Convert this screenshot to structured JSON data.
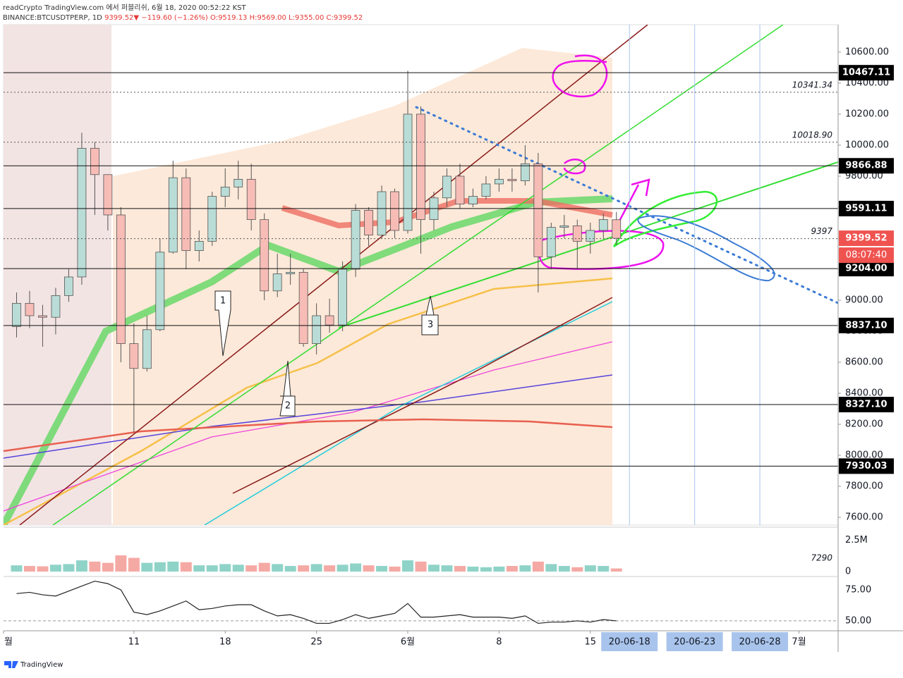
{
  "header": {
    "publisher": "readCrypto TradingView.com 에서 퍼블리쉬, 6월 18, 2020 00:52:22 KST",
    "quote": {
      "symbol": "BINANCE:BTCUSDTPERP, 1D",
      "price": "9399.52",
      "arrow": "▼",
      "change": "−119.60 (−1.26%)",
      "open": "O:9519.13",
      "high": "H:9569.00",
      "low": "L:9355.00",
      "close": "C:9399.52"
    }
  },
  "chart_data": {
    "type": "candlestick",
    "x": [
      "2020-05-02",
      "2020-05-03",
      "2020-05-04",
      "2020-05-05",
      "2020-05-06",
      "2020-05-07",
      "2020-05-08",
      "2020-05-09",
      "2020-05-10",
      "2020-05-11",
      "2020-05-12",
      "2020-05-13",
      "2020-05-14",
      "2020-05-15",
      "2020-05-16",
      "2020-05-17",
      "2020-05-18",
      "2020-05-19",
      "2020-05-20",
      "2020-05-21",
      "2020-05-22",
      "2020-05-23",
      "2020-05-24",
      "2020-05-25",
      "2020-05-26",
      "2020-05-27",
      "2020-05-28",
      "2020-05-29",
      "2020-05-30",
      "2020-05-31",
      "2020-06-01",
      "2020-06-02",
      "2020-06-03",
      "2020-06-04",
      "2020-06-05",
      "2020-06-06",
      "2020-06-07",
      "2020-06-08",
      "2020-06-09",
      "2020-06-10",
      "2020-06-11",
      "2020-06-12",
      "2020-06-13",
      "2020-06-14",
      "2020-06-15",
      "2020-06-16",
      "2020-06-17"
    ],
    "open": [
      8830,
      8980,
      8900,
      8890,
      9030,
      9150,
      9980,
      9810,
      9550,
      8720,
      8560,
      8810,
      9310,
      9790,
      9320,
      9380,
      9670,
      9730,
      9780,
      9520,
      9060,
      9170,
      9180,
      8720,
      8900,
      8840,
      9200,
      9580,
      9420,
      9700,
      9450,
      10200,
      9520,
      9660,
      9800,
      9620,
      9670,
      9750,
      9780,
      9770,
      9880,
      9280,
      9470,
      9480,
      9380,
      9450,
      9519.13
    ],
    "high": [
      9050,
      9060,
      8970,
      9080,
      9200,
      10080,
      10020,
      9800,
      9600,
      8850,
      8900,
      9400,
      9900,
      9850,
      9450,
      9700,
      9850,
      9900,
      9880,
      9560,
      9300,
      9300,
      9200,
      8980,
      9010,
      9250,
      9620,
      9600,
      9740,
      9720,
      10480,
      10250,
      9700,
      9850,
      9880,
      9720,
      9800,
      9850,
      9850,
      10000,
      9950,
      9500,
      9550,
      9520,
      9500,
      9560,
      9569
    ],
    "low": [
      8760,
      8820,
      8700,
      8780,
      8990,
      9100,
      9550,
      9450,
      8600,
      8150,
      8540,
      8800,
      9300,
      9200,
      9250,
      9350,
      9600,
      9650,
      9450,
      9000,
      9020,
      9100,
      8700,
      8650,
      8790,
      8800,
      9150,
      9350,
      9400,
      9400,
      9430,
      9300,
      9450,
      9600,
      9590,
      9600,
      9650,
      9700,
      9700,
      9740,
      9050,
      9200,
      9400,
      9200,
      9300,
      9400,
      9355
    ],
    "close": [
      8980,
      8900,
      8890,
      9030,
      9150,
      9980,
      9810,
      9550,
      8720,
      8560,
      8810,
      9310,
      9790,
      9320,
      9380,
      9670,
      9730,
      9780,
      9520,
      9060,
      9170,
      9180,
      8720,
      8900,
      8840,
      9200,
      9580,
      9420,
      9700,
      9450,
      10200,
      9520,
      9660,
      9800,
      9620,
      9670,
      9750,
      9780,
      9770,
      9880,
      9280,
      9470,
      9480,
      9380,
      9450,
      9520,
      9399.52
    ],
    "up_color": "#b9dcd6",
    "down_color": "#f7bcb6",
    "xlim": [
      "2020-05-01",
      "2020-07-04"
    ],
    "xticks": [
      {
        "value": "2020-05-01",
        "label": "월"
      },
      {
        "value": "2020-05-11",
        "label": "11"
      },
      {
        "value": "2020-05-18",
        "label": "18"
      },
      {
        "value": "2020-05-25",
        "label": "25"
      },
      {
        "value": "2020-06-01",
        "label": "6월"
      },
      {
        "value": "2020-06-08",
        "label": "8"
      },
      {
        "value": "2020-06-15",
        "label": "15"
      },
      {
        "value": "2020-07-01",
        "label": "7월"
      }
    ],
    "forecast_ticks": [
      {
        "value": "2020-06-18",
        "label": "20-06-18"
      },
      {
        "value": "2020-06-23",
        "label": "20-06-23"
      },
      {
        "value": "2020-06-28",
        "label": "20-06-28"
      }
    ],
    "ylim": [
      7550,
      10777
    ],
    "yticks": [
      {
        "value": 7600,
        "label": "7600.00"
      },
      {
        "value": 7800,
        "label": "7800.00"
      },
      {
        "value": 8000,
        "label": "8000.00"
      },
      {
        "value": 8200,
        "label": "8200.00"
      },
      {
        "value": 8400,
        "label": "8400.00"
      },
      {
        "value": 8600,
        "label": "8600.00"
      },
      {
        "value": 8800,
        "label": "8800.00"
      },
      {
        "value": 9000,
        "label": "9000.00"
      },
      {
        "value": 9200,
        "label": "9200.00"
      },
      {
        "value": 9400,
        "label": "9400.00"
      },
      {
        "value": 9600,
        "label": "9600.00"
      },
      {
        "value": 9800,
        "label": "9800.00"
      },
      {
        "value": 10000,
        "label": "10000.00"
      },
      {
        "value": 10200,
        "label": "10200.00"
      },
      {
        "value": 10400,
        "label": "10400.00"
      },
      {
        "value": 10600,
        "label": "10600.00"
      }
    ],
    "levels": [
      {
        "value": 10467.11,
        "label": "10467.11"
      },
      {
        "value": 9866.88,
        "label": "9866.88"
      },
      {
        "value": 9591.11,
        "label": "9591.11"
      },
      {
        "value": 9204,
        "label": "9204.00"
      },
      {
        "value": 8837.1,
        "label": "8837.10"
      },
      {
        "value": 8327.1,
        "label": "8327.10"
      },
      {
        "value": 7930.03,
        "label": "7930.03"
      }
    ],
    "dotted_levels": [
      {
        "value": 10341.34,
        "label": "10341.34"
      },
      {
        "value": 10018.9,
        "label": "10018.90"
      },
      9397,
      7290
    ],
    "last_price": {
      "value": 9399.52,
      "label": "9399.52"
    },
    "countdown": "08:07:40",
    "callouts": [
      "1",
      "2",
      "3"
    ],
    "volume": {
      "values": [
        500000,
        450000,
        420000,
        550000,
        600000,
        900000,
        800000,
        700000,
        1300000,
        1100000,
        700000,
        750000,
        800000,
        750000,
        500000,
        500000,
        600000,
        550000,
        500000,
        700000,
        600000,
        450000,
        500000,
        600000,
        500000,
        550000,
        650000,
        500000,
        450000,
        400000,
        900000,
        800000,
        550000,
        500000,
        450000,
        400000,
        350000,
        400000,
        450000,
        500000,
        800000,
        600000,
        450000,
        350000,
        500000,
        450000,
        250000
      ],
      "ylim": [
        0,
        3500000
      ],
      "yticks": [
        {
          "value": 2500000,
          "label": "2.5M"
        },
        0
      ]
    },
    "indicator": {
      "values": [
        72,
        73,
        71,
        70,
        74,
        78,
        82,
        80,
        75,
        57,
        55,
        58,
        62,
        66,
        59,
        60,
        62,
        63,
        63,
        58,
        54,
        55,
        52,
        48,
        48,
        51,
        55,
        52,
        54,
        56,
        64,
        53,
        53,
        54,
        55,
        53,
        53,
        53,
        52,
        54,
        48,
        49,
        49,
        50,
        49,
        51,
        50
      ],
      "ylim": [
        42,
        84.6
      ],
      "yticks": [
        {
          "value": 75,
          "label": "75.00"
        },
        {
          "value": 50,
          "label": "50.00"
        }
      ],
      "color": "#222"
    },
    "brand": "TradingView"
  }
}
